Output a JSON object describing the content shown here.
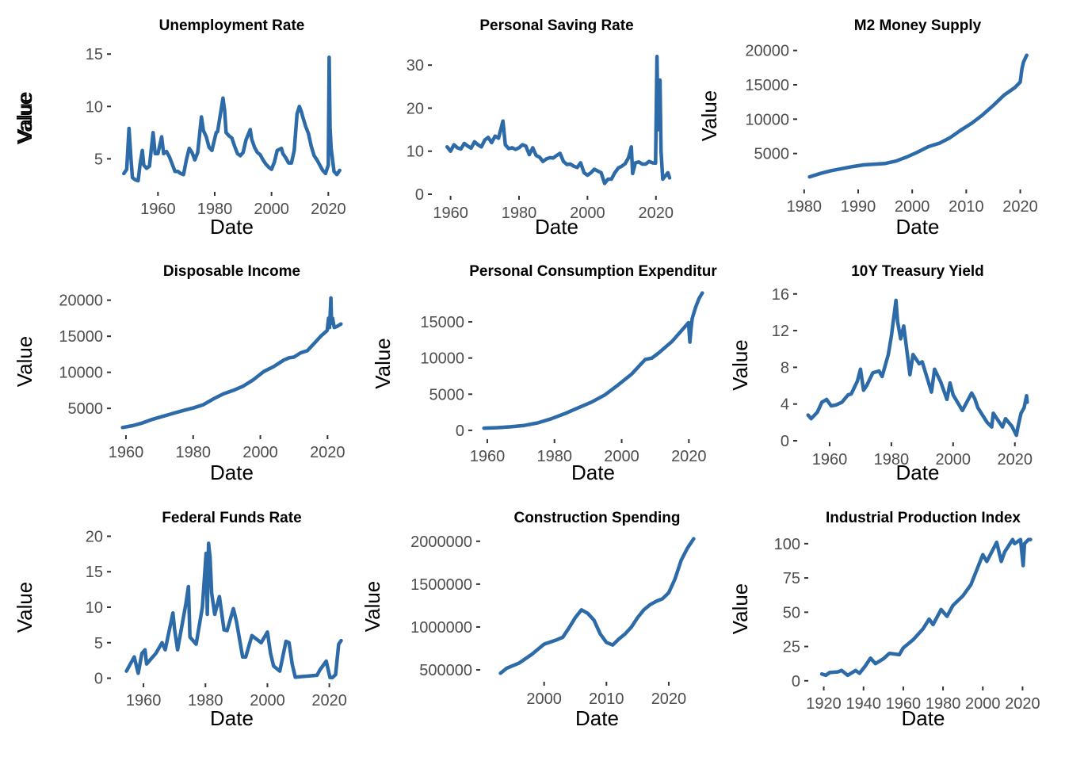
{
  "line_color": "#2c6aa8",
  "chart_data": [
    {
      "type": "line",
      "title": "Unemployment Rate",
      "xlabel": "Date",
      "ylabel": "Value",
      "xlim": [
        1944,
        2028
      ],
      "ylim": [
        2,
        16
      ],
      "xticks": [
        1960,
        1980,
        2000,
        2020
      ],
      "xtick_labels": [
        "1960",
        "1980",
        "2000",
        "2020"
      ],
      "yticks": [
        5,
        10,
        15
      ],
      "ytick_labels": [
        "5",
        "10",
        "15"
      ],
      "x": [
        1948,
        1949,
        1949.8,
        1950.5,
        1951,
        1952,
        1953,
        1953.7,
        1954.5,
        1955,
        1956,
        1957,
        1958.3,
        1959,
        1960,
        1961.3,
        1962,
        1963,
        1964,
        1965,
        1966,
        1967,
        1968,
        1969,
        1970,
        1971,
        1972,
        1973,
        1974,
        1975.3,
        1976,
        1977,
        1978,
        1979,
        1980.5,
        1981,
        1982.9,
        1983.5,
        1984,
        1985,
        1986,
        1987,
        1988,
        1989,
        1990,
        1991,
        1992.5,
        1993,
        1994,
        1995,
        1996,
        1997,
        1998,
        1999,
        2000,
        2001,
        2002,
        2003.5,
        2004,
        2005,
        2006,
        2007,
        2008,
        2009,
        2009.8,
        2010.5,
        2011,
        2012,
        2013,
        2014,
        2015,
        2016,
        2017,
        2018,
        2019,
        2020.0,
        2020.3,
        2020.6,
        2021,
        2022,
        2023,
        2024
      ],
      "values": [
        3.6,
        4.0,
        7.9,
        5.0,
        3.2,
        3.0,
        2.9,
        4.5,
        5.8,
        4.4,
        4.1,
        4.3,
        7.5,
        5.5,
        5.5,
        7.1,
        5.5,
        5.7,
        5.2,
        4.5,
        3.8,
        3.8,
        3.6,
        3.5,
        4.9,
        6.0,
        5.6,
        4.9,
        5.6,
        9.0,
        7.7,
        7.1,
        6.1,
        5.8,
        7.5,
        7.6,
        10.8,
        9.6,
        7.5,
        7.2,
        7.0,
        6.2,
        5.5,
        5.3,
        5.6,
        6.8,
        7.8,
        6.9,
        6.1,
        5.6,
        5.4,
        4.9,
        4.5,
        4.2,
        4.0,
        4.7,
        5.8,
        6.0,
        5.5,
        5.1,
        4.6,
        4.6,
        5.8,
        9.3,
        10.0,
        9.5,
        9.0,
        8.1,
        7.4,
        6.2,
        5.3,
        4.9,
        4.4,
        3.9,
        3.6,
        4.4,
        14.7,
        8.0,
        6.0,
        3.8,
        3.5,
        3.9
      ]
    },
    {
      "type": "line",
      "title": "Personal Saving Rate",
      "xlabel": "Date",
      "ylabel": "Value",
      "xlim": [
        1955,
        2027
      ],
      "ylim": [
        0,
        35
      ],
      "xticks": [
        1960,
        1980,
        2000,
        2020
      ],
      "xtick_labels": [
        "1960",
        "1980",
        "2000",
        "2020"
      ],
      "yticks": [
        0,
        10,
        20,
        30
      ],
      "ytick_labels": [
        "0",
        "10",
        "20",
        "30"
      ],
      "x": [
        1959,
        1960,
        1961,
        1962,
        1963,
        1964,
        1965,
        1966,
        1967,
        1968,
        1969,
        1970,
        1971,
        1972,
        1973,
        1974,
        1975.3,
        1976,
        1977,
        1978,
        1979,
        1980,
        1981,
        1982,
        1983,
        1984,
        1985,
        1986,
        1987,
        1988,
        1989,
        1990,
        1991,
        1992,
        1993,
        1994,
        1995,
        1996,
        1997,
        1998,
        1999,
        2000,
        2001,
        2002,
        2003,
        2004,
        2005,
        2006,
        2007,
        2008,
        2009,
        2010,
        2011,
        2012,
        2012.8,
        2013.2,
        2014,
        2015,
        2016,
        2017,
        2018,
        2019,
        2019.9,
        2020.3,
        2020.6,
        2021.0,
        2021.2,
        2021.5,
        2022,
        2023,
        2023.5,
        2024
      ],
      "values": [
        11.0,
        10.0,
        11.5,
        10.8,
        10.5,
        11.8,
        11.2,
        10.7,
        12.2,
        11.5,
        11.0,
        12.6,
        13.2,
        12.0,
        13.5,
        13.0,
        17.0,
        11.5,
        10.6,
        10.8,
        10.4,
        10.8,
        11.5,
        11.2,
        9.2,
        10.8,
        9.0,
        8.6,
        7.6,
        8.2,
        8.5,
        8.4,
        9.0,
        9.5,
        7.6,
        6.9,
        7.0,
        6.5,
        6.2,
        7.3,
        5.0,
        4.4,
        5.0,
        5.8,
        5.4,
        5.0,
        2.5,
        3.5,
        3.5,
        5.0,
        6.1,
        6.5,
        7.1,
        8.5,
        11.0,
        4.8,
        7.3,
        7.5,
        7.0,
        7.0,
        7.6,
        7.3,
        7.2,
        32.0,
        15.0,
        20.0,
        26.5,
        10.0,
        3.5,
        4.5,
        5.0,
        3.8
      ]
    },
    {
      "type": "line",
      "title": "M2 Money Supply",
      "xlabel": "Date",
      "ylabel": "Value",
      "xlim": [
        1979,
        2023
      ],
      "ylim": [
        0,
        21000
      ],
      "xticks": [
        1980,
        1990,
        2000,
        2010,
        2020
      ],
      "xtick_labels": [
        "1980",
        "1990",
        "2000",
        "2010",
        "2020"
      ],
      "yticks": [
        5000,
        10000,
        15000,
        20000
      ],
      "ytick_labels": [
        "5000",
        "10000",
        "15000",
        "20000"
      ],
      "x": [
        1981,
        1983,
        1985,
        1987,
        1989,
        1991,
        1993,
        1995,
        1997,
        1999,
        2001,
        2003,
        2005,
        2007,
        2009,
        2011,
        2013,
        2015,
        2017,
        2019,
        2020.0,
        2020.3,
        2020.6,
        2021.0,
        2021.2
      ],
      "values": [
        1600,
        2100,
        2500,
        2800,
        3100,
        3350,
        3450,
        3550,
        3900,
        4500,
        5200,
        6000,
        6500,
        7300,
        8400,
        9400,
        10600,
        12000,
        13500,
        14600,
        15400,
        17300,
        18300,
        19000,
        19300
      ]
    },
    {
      "type": "line",
      "title": "Disposable Income",
      "xlabel": "Date",
      "ylabel": "Value",
      "xlim": [
        1956,
        2027
      ],
      "ylim": [
        1500,
        21500
      ],
      "xticks": [
        1960,
        1980,
        2000,
        2020
      ],
      "xtick_labels": [
        "1960",
        "1980",
        "2000",
        "2020"
      ],
      "yticks": [
        5000,
        10000,
        15000,
        20000
      ],
      "ytick_labels": [
        "5000",
        "10000",
        "15000",
        "20000"
      ],
      "x": [
        1959,
        1962,
        1965,
        1968,
        1971,
        1974,
        1977,
        1980,
        1983,
        1986,
        1989,
        1992,
        1995,
        1998,
        2001,
        2004,
        2007,
        2008.5,
        2010,
        2012,
        2014,
        2016,
        2018,
        2019.9,
        2020.3,
        2020.6,
        2021.0,
        2021.2,
        2021.5,
        2022,
        2023,
        2024
      ],
      "values": [
        2350,
        2600,
        3000,
        3500,
        3900,
        4300,
        4700,
        5050,
        5500,
        6300,
        7000,
        7500,
        8100,
        9000,
        10100,
        10800,
        11700,
        12000,
        12100,
        12700,
        13000,
        14000,
        15000,
        15800,
        17500,
        16200,
        20300,
        16800,
        17500,
        16200,
        16400,
        16700
      ]
    },
    {
      "type": "line",
      "title": "Personal Consumption Expenditur",
      "xlabel": "Date",
      "ylabel": "Value",
      "xlim": [
        1956,
        2027
      ],
      "ylim": [
        -1000,
        19500
      ],
      "xticks": [
        1960,
        1980,
        2000,
        2020
      ],
      "xtick_labels": [
        "1960",
        "1980",
        "2000",
        "2020"
      ],
      "yticks": [
        0,
        5000,
        10000,
        15000
      ],
      "ytick_labels": [
        "0",
        "5000",
        "10000",
        "15000"
      ],
      "x": [
        1959,
        1963,
        1967,
        1971,
        1975,
        1979,
        1983,
        1987,
        1991,
        1995,
        1999,
        2003,
        2007,
        2009,
        2011,
        2015,
        2019.9,
        2020.3,
        2020.7,
        2021,
        2022,
        2023,
        2024
      ],
      "values": [
        310,
        375,
        490,
        680,
        1030,
        1600,
        2300,
        3100,
        3900,
        4900,
        6300,
        7800,
        9800,
        10000,
        10700,
        12300,
        14900,
        12200,
        14300,
        15500,
        17000,
        18200,
        19000
      ]
    },
    {
      "type": "line",
      "title": "10Y Treasury Yield",
      "xlabel": "Date",
      "ylabel": "Value",
      "xlim": [
        1950,
        2027
      ],
      "ylim": [
        0,
        16.5
      ],
      "xticks": [
        1960,
        1980,
        2000,
        2020
      ],
      "xtick_labels": [
        "1960",
        "1980",
        "2000",
        "2020"
      ],
      "yticks": [
        0,
        4,
        8,
        12,
        16
      ],
      "ytick_labels": [
        "0",
        "4",
        "8",
        "12",
        "16"
      ],
      "x": [
        1953,
        1954,
        1956,
        1957.5,
        1959,
        1960.5,
        1962,
        1964,
        1966,
        1967,
        1969,
        1970,
        1971,
        1972,
        1974,
        1976,
        1977,
        1979,
        1980,
        1981.5,
        1982,
        1983,
        1984,
        1986,
        1987,
        1989,
        1990,
        1993,
        1994,
        1996,
        1998,
        1999,
        2000,
        2003,
        2006,
        2007,
        2008,
        2011,
        2012.5,
        2013,
        2016,
        2017,
        2019,
        2020.5,
        2021,
        2022,
        2023,
        2023.8,
        2024
      ],
      "values": [
        2.8,
        2.4,
        3.1,
        4.2,
        4.5,
        3.8,
        3.9,
        4.2,
        5.0,
        5.1,
        6.5,
        7.8,
        5.5,
        6.0,
        7.4,
        7.6,
        7.0,
        9.4,
        11.4,
        15.3,
        13.0,
        11.1,
        12.5,
        7.2,
        9.4,
        8.4,
        8.6,
        5.3,
        7.8,
        6.4,
        4.5,
        6.3,
        5.0,
        3.3,
        5.2,
        4.6,
        3.6,
        2.0,
        1.5,
        3.0,
        1.5,
        2.4,
        1.6,
        0.6,
        1.5,
        3.0,
        3.6,
        4.9,
        4.2
      ]
    },
    {
      "type": "line",
      "title": "Federal Funds Rate",
      "xlabel": "Date",
      "ylabel": "Value",
      "xlim": [
        1950,
        2027
      ],
      "ylim": [
        -0.5,
        20.5
      ],
      "xticks": [
        1960,
        1980,
        2000,
        2020
      ],
      "xtick_labels": [
        "1960",
        "1980",
        "2000",
        "2020"
      ],
      "yticks": [
        0,
        5,
        10,
        15,
        20
      ],
      "ytick_labels": [
        "0",
        "5",
        "10",
        "15",
        "20"
      ],
      "x": [
        1954.5,
        1955.5,
        1957,
        1958.3,
        1959.5,
        1960.5,
        1961,
        1964,
        1966,
        1967,
        1969.5,
        1970,
        1971,
        1973.7,
        1974.5,
        1975,
        1977,
        1979,
        1980.2,
        1980.6,
        1981,
        1981.5,
        1982,
        1983,
        1984.5,
        1986,
        1987,
        1989,
        1990,
        1992,
        1993,
        1994,
        1995,
        1998,
        2000,
        2001,
        2002,
        2004,
        2006,
        2007,
        2008,
        2009,
        2016,
        2017,
        2019,
        2020.2,
        2021,
        2022,
        2023,
        2023.8
      ],
      "values": [
        1.0,
        1.8,
        3.0,
        0.7,
        3.5,
        4.0,
        2.0,
        3.5,
        5.0,
        4.0,
        9.2,
        7.0,
        4.0,
        10.5,
        12.9,
        5.8,
        4.8,
        10.0,
        17.6,
        9.0,
        19.0,
        17.0,
        12.0,
        9.0,
        11.5,
        6.8,
        6.7,
        9.8,
        8.0,
        3.0,
        3.0,
        4.5,
        6.0,
        5.0,
        6.5,
        3.5,
        1.7,
        1.0,
        5.2,
        5.0,
        2.0,
        0.15,
        0.4,
        1.2,
        2.4,
        0.1,
        0.08,
        0.5,
        4.8,
        5.3
      ]
    },
    {
      "type": "line",
      "title": "Construction Spending",
      "xlabel": "Date",
      "ylabel": "Value",
      "xlim": [
        1990,
        2027
      ],
      "ylim": [
        380000,
        2100000
      ],
      "xticks": [
        2000,
        2010,
        2020
      ],
      "xtick_labels": [
        "2000",
        "2010",
        "2020"
      ],
      "yticks": [
        500000,
        1000000,
        1500000,
        2000000
      ],
      "ytick_labels": [
        "500000",
        "1000000",
        "1500000",
        "2000000"
      ],
      "x": [
        1993,
        1994,
        1996,
        1998,
        2000,
        2002,
        2003,
        2004,
        2005,
        2006,
        2007,
        2008,
        2009,
        2010,
        2011,
        2012,
        2013,
        2014,
        2015,
        2016,
        2017,
        2018,
        2019,
        2020,
        2021,
        2022,
        2023,
        2024
      ],
      "values": [
        460000,
        520000,
        580000,
        680000,
        800000,
        850000,
        880000,
        990000,
        1110000,
        1200000,
        1160000,
        1080000,
        920000,
        820000,
        790000,
        860000,
        920000,
        1000000,
        1110000,
        1200000,
        1260000,
        1300000,
        1330000,
        1400000,
        1560000,
        1780000,
        1920000,
        2030000
      ]
    },
    {
      "type": "line",
      "title": "Industrial Production Index",
      "xlabel": "Date",
      "ylabel": "Value",
      "xlim": [
        1913,
        2027
      ],
      "ylim": [
        -3,
        108
      ],
      "xticks": [
        1920,
        1940,
        1960,
        1980,
        2000,
        2020
      ],
      "xtick_labels": [
        "1920",
        "1940",
        "1960",
        "1980",
        "2000",
        "2020"
      ],
      "yticks": [
        0,
        25,
        50,
        75,
        100
      ],
      "ytick_labels": [
        "0",
        "25",
        "50",
        "75",
        "100"
      ],
      "x": [
        1919,
        1921,
        1923,
        1927,
        1929,
        1932,
        1936,
        1938,
        1941,
        1943.5,
        1946,
        1950,
        1953,
        1958,
        1960,
        1965,
        1970,
        1973,
        1975,
        1979,
        1982,
        1985,
        1990,
        1994,
        2000,
        2002,
        2007,
        2009.3,
        2011,
        2015,
        2016,
        2019,
        2020.3,
        2021,
        2023,
        2024
      ],
      "values": [
        5.0,
        4.0,
        6.0,
        6.5,
        7.5,
        4.0,
        7.5,
        5.5,
        11.0,
        16.5,
        12.5,
        16.0,
        20.0,
        19.0,
        24.0,
        30.0,
        38.0,
        45.0,
        41.0,
        52.0,
        47.0,
        55.0,
        62.0,
        70.0,
        92.0,
        87.0,
        101.0,
        87.0,
        94.0,
        103.0,
        100.0,
        103.0,
        84.0,
        100.0,
        103.0,
        103.0
      ]
    }
  ]
}
